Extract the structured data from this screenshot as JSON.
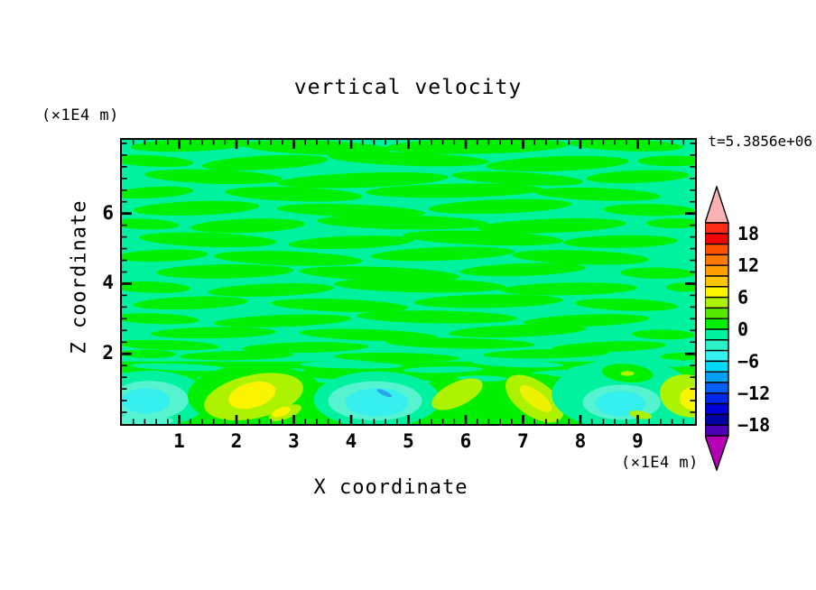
{
  "chart_data": {
    "type": "contour",
    "title": "vertical velocity",
    "annotation": "t=5.3856e+06",
    "xlabel": "X coordinate",
    "ylabel": "Z coordinate",
    "x_unit": "(×1E4 m)",
    "y_unit": "(×1E4 m)",
    "xlim": [
      0,
      10
    ],
    "ylim": [
      0,
      8.1
    ],
    "contour_interval": 2,
    "value_range_shown": [
      -20,
      20
    ],
    "axes": {
      "x": {
        "label": "X coordinate",
        "unit": "(×1E4 m)",
        "ticks": [
          "1",
          "2",
          "3",
          "4",
          "5",
          "6",
          "7",
          "8",
          "9"
        ],
        "tick_values": [
          1,
          2,
          3,
          4,
          5,
          6,
          7,
          8,
          9
        ],
        "minor_step": 0.2
      },
      "y": {
        "label": "Z coordinate",
        "unit": "(×1E4 m)",
        "ticks": [
          "2",
          "4",
          "6"
        ],
        "tick_values": [
          2,
          4,
          6
        ],
        "minor_step": 0.3333
      }
    },
    "colorbar": {
      "labels": [
        "18",
        "12",
        "6",
        "0",
        "−6",
        "−12",
        "−18"
      ],
      "label_values": [
        18,
        12,
        6,
        0,
        -6,
        -12,
        -18
      ],
      "levels": [
        20,
        18,
        16,
        14,
        12,
        10,
        8,
        6,
        4,
        2,
        0,
        -2,
        -4,
        -6,
        -8,
        -10,
        -12,
        -14,
        -16,
        -18,
        -20
      ],
      "over_color": "#f9b2b2",
      "under_color": "#b600b6",
      "box_colors": [
        "#fb2c18",
        "#f60400",
        "#fd5200",
        "#ff7a00",
        "#ffa000",
        "#ffc600",
        "#fdf400",
        "#adf200",
        "#56e900",
        "#00f000",
        "#00f29c",
        "#2cf2c8",
        "#35f0ee",
        "#00d8f8",
        "#009ff2",
        "#0060f4",
        "#0028e8",
        "#0000d8",
        "#0000a0",
        "#4a00b4"
      ]
    },
    "field": {
      "background_color": "#00f29e",
      "stripe_color": "#00f000",
      "band_color": "#00f000",
      "band_top": 1.78,
      "stripes": [
        [
          1.2,
          7.95,
          1.05,
          0.18,
          -2
        ],
        [
          3.4,
          7.88,
          1.3,
          0.2,
          2
        ],
        [
          6.2,
          7.92,
          1.6,
          0.22,
          -1
        ],
        [
          8.8,
          7.95,
          1.0,
          0.17,
          2
        ],
        [
          0.5,
          7.5,
          0.75,
          0.16,
          3
        ],
        [
          2.5,
          7.45,
          1.1,
          0.2,
          -3
        ],
        [
          5.0,
          7.55,
          1.4,
          0.19,
          2
        ],
        [
          7.6,
          7.42,
          1.25,
          0.21,
          -2
        ],
        [
          9.6,
          7.5,
          0.6,
          0.15,
          0
        ],
        [
          1.6,
          7.05,
          1.2,
          0.2,
          2
        ],
        [
          4.2,
          6.95,
          1.5,
          0.21,
          -2
        ],
        [
          6.9,
          7.0,
          1.15,
          0.18,
          3
        ],
        [
          9.0,
          7.05,
          0.9,
          0.18,
          -2
        ],
        [
          0.55,
          6.6,
          0.7,
          0.16,
          -3
        ],
        [
          3.0,
          6.55,
          1.2,
          0.2,
          2
        ],
        [
          5.8,
          6.65,
          1.55,
          0.2,
          -1
        ],
        [
          8.3,
          6.55,
          1.1,
          0.18,
          2
        ],
        [
          1.3,
          6.15,
          1.1,
          0.2,
          -2
        ],
        [
          4.0,
          6.08,
          1.3,
          0.18,
          2
        ],
        [
          6.6,
          6.2,
          1.25,
          0.2,
          -2
        ],
        [
          9.2,
          6.1,
          0.8,
          0.17,
          1
        ],
        [
          0.4,
          5.7,
          0.6,
          0.15,
          2
        ],
        [
          2.2,
          5.65,
          1.0,
          0.2,
          -2
        ],
        [
          4.9,
          5.75,
          1.5,
          0.2,
          1
        ],
        [
          7.5,
          5.65,
          1.3,
          0.2,
          -2
        ],
        [
          9.65,
          5.72,
          0.5,
          0.14,
          0
        ],
        [
          1.5,
          5.25,
          1.2,
          0.2,
          2
        ],
        [
          4.0,
          5.18,
          1.1,
          0.18,
          -2
        ],
        [
          6.3,
          5.3,
          1.4,
          0.2,
          2
        ],
        [
          8.7,
          5.2,
          1.0,
          0.18,
          -1
        ],
        [
          0.7,
          4.8,
          0.8,
          0.17,
          -2
        ],
        [
          2.9,
          4.72,
          1.3,
          0.2,
          2
        ],
        [
          5.6,
          4.85,
          1.25,
          0.19,
          -2
        ],
        [
          8.0,
          4.75,
          1.2,
          0.2,
          2
        ],
        [
          1.8,
          4.35,
          1.2,
          0.2,
          -1
        ],
        [
          4.5,
          4.28,
          1.4,
          0.2,
          2
        ],
        [
          7.0,
          4.4,
          1.1,
          0.18,
          -2
        ],
        [
          9.35,
          4.3,
          0.65,
          0.16,
          1
        ],
        [
          0.5,
          3.9,
          0.7,
          0.16,
          2
        ],
        [
          2.6,
          3.82,
          1.1,
          0.18,
          -2
        ],
        [
          5.2,
          3.95,
          1.5,
          0.2,
          1
        ],
        [
          7.8,
          3.85,
          1.2,
          0.18,
          -1
        ],
        [
          9.85,
          3.9,
          0.35,
          0.13,
          0
        ],
        [
          1.2,
          3.45,
          1.0,
          0.18,
          -2
        ],
        [
          3.8,
          3.38,
          1.2,
          0.18,
          2
        ],
        [
          6.4,
          3.5,
          1.3,
          0.19,
          -1
        ],
        [
          8.8,
          3.4,
          0.9,
          0.17,
          2
        ],
        [
          0.6,
          3.0,
          0.75,
          0.15,
          2
        ],
        [
          2.8,
          2.94,
          1.2,
          0.17,
          -2
        ],
        [
          5.5,
          3.05,
          1.4,
          0.18,
          1
        ],
        [
          8.1,
          2.95,
          1.1,
          0.17,
          -2
        ],
        [
          1.6,
          2.6,
          1.1,
          0.16,
          -1
        ],
        [
          4.3,
          2.54,
          1.2,
          0.16,
          2
        ],
        [
          6.9,
          2.65,
          1.2,
          0.17,
          -2
        ],
        [
          9.45,
          2.55,
          0.55,
          0.14,
          1
        ],
        [
          0.8,
          2.25,
          0.9,
          0.14,
          2
        ],
        [
          3.2,
          2.18,
          1.1,
          0.15,
          -1
        ],
        [
          5.9,
          2.3,
          1.3,
          0.15,
          1
        ],
        [
          8.5,
          2.2,
          1.0,
          0.15,
          -2
        ],
        [
          2.0,
          1.95,
          1.0,
          0.13,
          -1
        ],
        [
          4.8,
          1.9,
          1.1,
          0.13,
          1
        ],
        [
          7.4,
          2.0,
          1.1,
          0.13,
          -1
        ],
        [
          9.75,
          1.92,
          0.35,
          0.11,
          0
        ],
        [
          0.45,
          2.0,
          0.5,
          0.12,
          1
        ]
      ],
      "filaments": [
        [
          1.0,
          1.62,
          0.85,
          0.1,
          2
        ],
        [
          2.6,
          1.5,
          0.6,
          0.09,
          -2
        ],
        [
          4.0,
          1.68,
          0.9,
          0.1,
          1
        ],
        [
          5.6,
          1.55,
          0.7,
          0.09,
          -1
        ],
        [
          6.9,
          1.72,
          0.8,
          0.1,
          2
        ],
        [
          0.3,
          1.4,
          0.4,
          0.08,
          0
        ],
        [
          3.3,
          1.25,
          0.45,
          0.07,
          2
        ],
        [
          5.0,
          1.18,
          0.4,
          0.07,
          -2
        ],
        [
          6.3,
          1.3,
          0.45,
          0.08,
          1
        ],
        [
          7.7,
          1.45,
          0.55,
          0.09,
          -1
        ],
        [
          9.3,
          1.75,
          0.7,
          0.12,
          2
        ],
        [
          1.7,
          1.3,
          0.4,
          0.07,
          1
        ],
        [
          8.3,
          1.6,
          0.5,
          0.1,
          -2
        ]
      ],
      "cells": [
        [
          "#00f29e",
          0.5,
          0.72,
          1.02,
          0.8,
          0
        ],
        [
          "#55f3d0",
          0.48,
          0.68,
          0.68,
          0.55,
          0
        ],
        [
          "#35f0ee",
          0.42,
          0.66,
          0.42,
          0.36,
          0
        ],
        [
          "#55f3d0",
          0.35,
          0.1,
          0.55,
          0.16,
          0
        ],
        [
          "#00f000",
          2.35,
          0.8,
          1.2,
          0.9,
          0
        ],
        [
          "#adf200",
          2.3,
          0.78,
          0.88,
          0.62,
          -12
        ],
        [
          "#fbf400",
          2.27,
          0.82,
          0.42,
          0.36,
          -15
        ],
        [
          "#adf200",
          2.85,
          0.32,
          0.3,
          0.18,
          -20
        ],
        [
          "#fbf400",
          2.78,
          0.34,
          0.17,
          0.12,
          -20
        ],
        [
          "#00f29e",
          4.45,
          0.7,
          1.1,
          0.8,
          0
        ],
        [
          "#55f3d0",
          4.42,
          0.66,
          0.82,
          0.56,
          0
        ],
        [
          "#35f0ee",
          4.45,
          0.62,
          0.55,
          0.4,
          0
        ],
        [
          "#2ba6ec",
          4.58,
          0.88,
          0.14,
          0.07,
          25
        ],
        [
          "#adf200",
          5.85,
          0.85,
          0.48,
          0.34,
          -25
        ],
        [
          "#00f000",
          7.2,
          0.75,
          0.8,
          0.68,
          0
        ],
        [
          "#adf200",
          7.2,
          0.72,
          0.58,
          0.5,
          35
        ],
        [
          "#eef200",
          7.22,
          0.72,
          0.34,
          0.22,
          38
        ],
        [
          "#00f29e",
          8.75,
          0.85,
          1.25,
          1.0,
          0
        ],
        [
          "#00f29e",
          9.3,
          0.15,
          0.9,
          0.3,
          0
        ],
        [
          "#55f3d0",
          8.72,
          0.62,
          0.68,
          0.5,
          0
        ],
        [
          "#35f0ee",
          8.7,
          0.58,
          0.44,
          0.36,
          0
        ],
        [
          "#00f000",
          8.82,
          1.45,
          0.45,
          0.26,
          5
        ],
        [
          "#adf200",
          8.82,
          1.44,
          0.12,
          0.07,
          0
        ],
        [
          "#adf200",
          9.05,
          0.26,
          0.2,
          0.11,
          10
        ],
        [
          "#adf200",
          9.88,
          0.8,
          0.5,
          0.6,
          12
        ],
        [
          "#fbf400",
          9.98,
          0.72,
          0.25,
          0.33,
          8
        ]
      ]
    }
  }
}
